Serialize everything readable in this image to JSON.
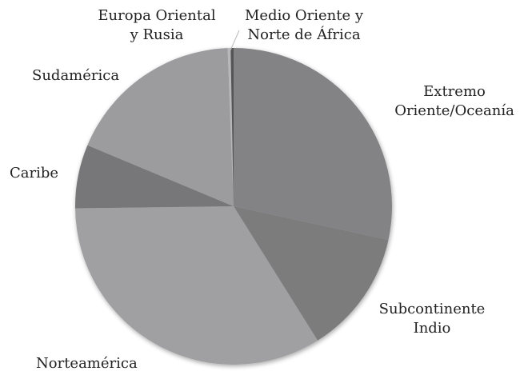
{
  "chart_data": {
    "type": "pie",
    "title": "",
    "start": "top",
    "direction": "clockwise",
    "slices": [
      {
        "label": [
          "Extremo",
          "Oriente/Oceanía"
        ],
        "value": 28.4,
        "color": "#838385"
      },
      {
        "label": [
          "Subcontinente",
          "Indio"
        ],
        "value": 12.7,
        "color": "#7b7b7d"
      },
      {
        "label": [
          "Norteamérica"
        ],
        "value": 33.7,
        "color": "#a0a0a2"
      },
      {
        "label": [
          "Caribe"
        ],
        "value": 6.5,
        "color": "#77777a"
      },
      {
        "label": [
          "Sudamérica"
        ],
        "value": 18.1,
        "color": "#9c9c9e"
      },
      {
        "label": [
          "Europa Oriental",
          "y Rusia"
        ],
        "value": 0.3,
        "color": "#b8b8ba"
      },
      {
        "label": [
          "Medio Oriente y",
          "Norte de África"
        ],
        "value": 0.3,
        "color": "#555557"
      }
    ]
  }
}
